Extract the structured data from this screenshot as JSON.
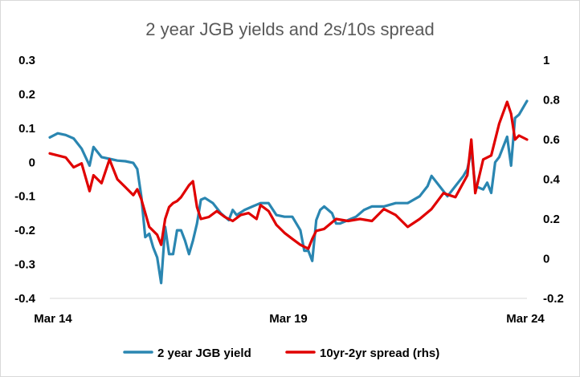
{
  "chart_data": {
    "type": "line",
    "title": "2 year JGB yields and 2s/10s spread",
    "x_ticks": [
      "Mar 14",
      "Mar 19",
      "Mar 24"
    ],
    "x_range": [
      "2014-03",
      "2024-03"
    ],
    "ylim_left": [
      -0.4,
      0.3
    ],
    "ylim_right": [
      -0.2,
      1.0
    ],
    "yticks_left": [
      "0.3",
      "0.2",
      "0.1",
      "0",
      "-0.1",
      "-0.2",
      "-0.3",
      "-0.4"
    ],
    "yticks_right": [
      "1",
      "0.8",
      "0.6",
      "0.4",
      "0.2",
      "0",
      "-0.2"
    ],
    "grid": false,
    "legend_position": "bottom",
    "series": [
      {
        "name": "2 year JGB yield",
        "axis": "left",
        "color": "#2a86b1",
        "points": [
          [
            "2014-03",
            0.073
          ],
          [
            "2014-05",
            0.085
          ],
          [
            "2014-07",
            0.08
          ],
          [
            "2014-09",
            0.07
          ],
          [
            "2014-11",
            0.04
          ],
          [
            "2015-01",
            -0.01
          ],
          [
            "2015-02",
            0.045
          ],
          [
            "2015-04",
            0.015
          ],
          [
            "2015-06",
            0.01
          ],
          [
            "2015-08",
            0.005
          ],
          [
            "2015-10",
            0.003
          ],
          [
            "2015-12",
            -0.002
          ],
          [
            "2016-01",
            -0.02
          ],
          [
            "2016-02",
            -0.1
          ],
          [
            "2016-03",
            -0.22
          ],
          [
            "2016-04",
            -0.21
          ],
          [
            "2016-05",
            -0.25
          ],
          [
            "2016-06",
            -0.28
          ],
          [
            "2016-07",
            -0.355
          ],
          [
            "2016-08",
            -0.19
          ],
          [
            "2016-09",
            -0.27
          ],
          [
            "2016-10",
            -0.27
          ],
          [
            "2016-11",
            -0.2
          ],
          [
            "2016-12",
            -0.2
          ],
          [
            "2017-01",
            -0.23
          ],
          [
            "2017-02",
            -0.27
          ],
          [
            "2017-03",
            -0.23
          ],
          [
            "2017-04",
            -0.18
          ],
          [
            "2017-05",
            -0.11
          ],
          [
            "2017-06",
            -0.105
          ],
          [
            "2017-08",
            -0.12
          ],
          [
            "2017-10",
            -0.15
          ],
          [
            "2017-12",
            -0.17
          ],
          [
            "2018-01",
            -0.14
          ],
          [
            "2018-02",
            -0.155
          ],
          [
            "2018-04",
            -0.14
          ],
          [
            "2018-06",
            -0.13
          ],
          [
            "2018-08",
            -0.12
          ],
          [
            "2018-10",
            -0.12
          ],
          [
            "2018-12",
            -0.155
          ],
          [
            "2019-02",
            -0.16
          ],
          [
            "2019-04",
            -0.16
          ],
          [
            "2019-06",
            -0.2
          ],
          [
            "2019-07",
            -0.26
          ],
          [
            "2019-08",
            -0.26
          ],
          [
            "2019-09",
            -0.29
          ],
          [
            "2019-10",
            -0.17
          ],
          [
            "2019-11",
            -0.14
          ],
          [
            "2019-12",
            -0.13
          ],
          [
            "2020-02",
            -0.15
          ],
          [
            "2020-03",
            -0.18
          ],
          [
            "2020-04",
            -0.18
          ],
          [
            "2020-06",
            -0.17
          ],
          [
            "2020-08",
            -0.16
          ],
          [
            "2020-10",
            -0.14
          ],
          [
            "2020-12",
            -0.13
          ],
          [
            "2021-03",
            -0.13
          ],
          [
            "2021-06",
            -0.12
          ],
          [
            "2021-09",
            -0.12
          ],
          [
            "2021-12",
            -0.1
          ],
          [
            "2022-02",
            -0.07
          ],
          [
            "2022-03",
            -0.04
          ],
          [
            "2022-05",
            -0.07
          ],
          [
            "2022-07",
            -0.1
          ],
          [
            "2022-09",
            -0.07
          ],
          [
            "2022-11",
            -0.04
          ],
          [
            "2022-12",
            -0.02
          ],
          [
            "2023-01",
            0.035
          ],
          [
            "2023-02",
            -0.07
          ],
          [
            "2023-04",
            -0.08
          ],
          [
            "2023-05",
            -0.06
          ],
          [
            "2023-06",
            -0.09
          ],
          [
            "2023-07",
            0.0
          ],
          [
            "2023-08",
            0.015
          ],
          [
            "2023-10",
            0.075
          ],
          [
            "2023-11",
            -0.01
          ],
          [
            "2023-12",
            0.13
          ],
          [
            "2024-01",
            0.14
          ],
          [
            "2024-03",
            0.18
          ]
        ]
      },
      {
        "name": "10yr-2yr spread (rhs)",
        "axis": "right",
        "color": "#e00000",
        "points": [
          [
            "2014-03",
            0.53
          ],
          [
            "2014-05",
            0.52
          ],
          [
            "2014-07",
            0.51
          ],
          [
            "2014-09",
            0.46
          ],
          [
            "2014-11",
            0.48
          ],
          [
            "2015-01",
            0.34
          ],
          [
            "2015-02",
            0.42
          ],
          [
            "2015-04",
            0.38
          ],
          [
            "2015-06",
            0.5
          ],
          [
            "2015-08",
            0.4
          ],
          [
            "2015-10",
            0.36
          ],
          [
            "2015-12",
            0.32
          ],
          [
            "2016-01",
            0.35
          ],
          [
            "2016-02",
            0.3
          ],
          [
            "2016-04",
            0.16
          ],
          [
            "2016-06",
            0.12
          ],
          [
            "2016-07",
            0.07
          ],
          [
            "2016-08",
            0.2
          ],
          [
            "2016-09",
            0.26
          ],
          [
            "2016-10",
            0.28
          ],
          [
            "2016-11",
            0.29
          ],
          [
            "2016-12",
            0.31
          ],
          [
            "2017-02",
            0.37
          ],
          [
            "2017-03",
            0.39
          ],
          [
            "2017-04",
            0.26
          ],
          [
            "2017-05",
            0.2
          ],
          [
            "2017-07",
            0.21
          ],
          [
            "2017-09",
            0.24
          ],
          [
            "2017-11",
            0.21
          ],
          [
            "2018-01",
            0.19
          ],
          [
            "2018-03",
            0.22
          ],
          [
            "2018-05",
            0.23
          ],
          [
            "2018-07",
            0.2
          ],
          [
            "2018-08",
            0.27
          ],
          [
            "2018-10",
            0.24
          ],
          [
            "2018-12",
            0.17
          ],
          [
            "2019-02",
            0.13
          ],
          [
            "2019-04",
            0.1
          ],
          [
            "2019-06",
            0.07
          ],
          [
            "2019-08",
            0.05
          ],
          [
            "2019-09",
            0.1
          ],
          [
            "2019-10",
            0.14
          ],
          [
            "2019-12",
            0.15
          ],
          [
            "2020-03",
            0.2
          ],
          [
            "2020-06",
            0.19
          ],
          [
            "2020-09",
            0.2
          ],
          [
            "2020-12",
            0.19
          ],
          [
            "2021-03",
            0.25
          ],
          [
            "2021-06",
            0.22
          ],
          [
            "2021-09",
            0.16
          ],
          [
            "2021-12",
            0.2
          ],
          [
            "2022-03",
            0.25
          ],
          [
            "2022-06",
            0.33
          ],
          [
            "2022-09",
            0.31
          ],
          [
            "2022-12",
            0.42
          ],
          [
            "2023-01",
            0.6
          ],
          [
            "2023-02",
            0.33
          ],
          [
            "2023-04",
            0.5
          ],
          [
            "2023-06",
            0.52
          ],
          [
            "2023-08",
            0.68
          ],
          [
            "2023-10",
            0.79
          ],
          [
            "2023-11",
            0.73
          ],
          [
            "2023-12",
            0.6
          ],
          [
            "2024-01",
            0.62
          ],
          [
            "2024-03",
            0.6
          ]
        ]
      }
    ]
  }
}
